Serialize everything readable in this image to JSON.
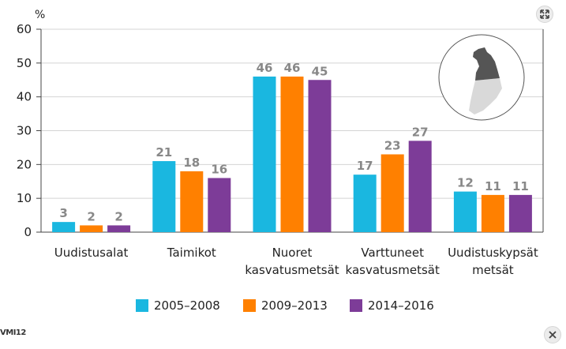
{
  "chart_data": {
    "type": "bar",
    "title": "",
    "unit_label": "%",
    "ylim": [
      0,
      60
    ],
    "yticks": [
      0,
      10,
      20,
      30,
      40,
      50,
      60
    ],
    "grid": true,
    "legend_position": "bottom",
    "categories": [
      [
        "Uudistusalat"
      ],
      [
        "Taimikot"
      ],
      [
        "Nuoret",
        "kasvatusmetsät"
      ],
      [
        "Varttuneet",
        "kasvatusmetsät"
      ],
      [
        "Uudistuskypsät",
        "metsät"
      ]
    ],
    "series": [
      {
        "name": "2005–2008",
        "color": "#1ab7e0",
        "values": [
          3,
          21,
          46,
          17,
          12
        ]
      },
      {
        "name": "2009–2013",
        "color": "#ff8000",
        "values": [
          2,
          18,
          46,
          23,
          11
        ]
      },
      {
        "name": "2014–2016",
        "color": "#7d3c98",
        "values": [
          2,
          16,
          45,
          27,
          11
        ]
      }
    ]
  },
  "source_label": "VMI12",
  "icons": {
    "expand": "expand-icon",
    "close": "close-icon",
    "map": "finland-map-icon"
  }
}
